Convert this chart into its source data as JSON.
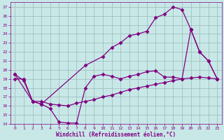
{
  "xlabel": "Windchill (Refroidissement éolien,°C)",
  "bg_color": "#c8e8e8",
  "line_color": "#800080",
  "xlim": [
    -0.5,
    23.5
  ],
  "ylim": [
    14,
    27.5
  ],
  "xticks": [
    0,
    1,
    2,
    3,
    4,
    5,
    6,
    7,
    8,
    9,
    10,
    11,
    12,
    13,
    14,
    15,
    16,
    17,
    18,
    19,
    20,
    21,
    22,
    23
  ],
  "yticks": [
    14,
    15,
    16,
    17,
    18,
    19,
    20,
    21,
    22,
    23,
    24,
    25,
    26,
    27
  ],
  "line1_x": [
    0,
    1,
    2,
    3,
    4,
    5,
    6,
    7,
    8,
    9,
    10,
    11,
    12,
    13,
    14,
    15,
    16,
    17,
    18,
    19,
    20,
    21,
    22,
    23
  ],
  "line1_y": [
    19.5,
    18.8,
    16.5,
    16.2,
    15.7,
    14.2,
    14.1,
    14.1,
    18.0,
    19.3,
    19.5,
    19.3,
    19.0,
    19.3,
    19.5,
    19.8,
    19.9,
    19.2,
    19.2,
    19.0,
    24.5,
    22.0,
    21.0,
    19.0
  ],
  "line2_x": [
    0,
    1,
    2,
    3,
    4,
    5,
    6,
    7,
    8,
    9,
    10,
    11,
    12,
    13,
    14,
    15,
    16,
    17,
    18,
    19,
    20,
    21,
    22,
    23
  ],
  "line2_y": [
    19.0,
    19.0,
    16.5,
    16.5,
    16.2,
    16.1,
    16.0,
    16.3,
    16.5,
    16.7,
    17.0,
    17.2,
    17.5,
    17.8,
    18.0,
    18.2,
    18.4,
    18.6,
    18.8,
    19.0,
    19.1,
    19.2,
    19.1,
    19.0
  ],
  "line3_x": [
    0,
    2,
    3,
    8,
    10,
    11,
    12,
    13,
    14,
    15,
    16,
    17,
    18,
    19,
    20,
    21,
    22,
    23
  ],
  "line3_y": [
    19.5,
    16.5,
    16.2,
    20.5,
    21.5,
    22.5,
    23.0,
    23.8,
    24.0,
    24.3,
    25.8,
    26.2,
    27.0,
    26.7,
    24.5,
    22.0,
    21.0,
    19.0
  ],
  "grid_color": "#9ababa",
  "tick_color": "#800080",
  "marker": "D",
  "markersize": 2.5,
  "linewidth": 0.9
}
